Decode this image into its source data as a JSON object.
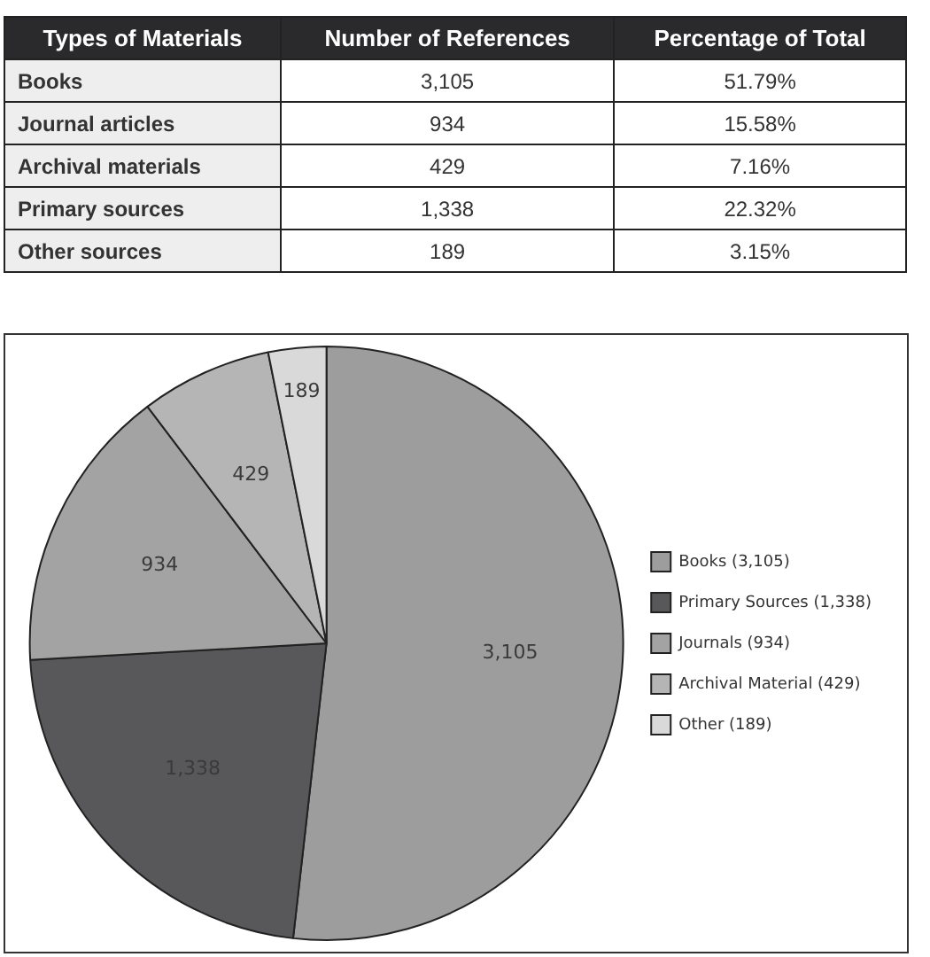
{
  "chart_data": [
    {
      "type": "other",
      "annotations": [
        "Types of Materials",
        "Number of References",
        "Percentage of Total",
        "Books",
        "3,105",
        "51.79%",
        "Journal articles",
        "934",
        "15.58%",
        "Archival materials",
        "429",
        "7.16%",
        "Primary sources",
        "1,338",
        "22.32%",
        "Other sources",
        "189",
        "3.15%"
      ]
    },
    {
      "type": "pie",
      "categories": [
        "Books (3,105)",
        "Primary Sources (1,338)",
        "Journals (934)",
        "Archival Material (429)",
        "Other (189)"
      ],
      "values": [
        3105,
        1338,
        934,
        429,
        189
      ],
      "value_labels": [
        "3,105",
        "1,338",
        "934",
        "429",
        "189"
      ],
      "colors": [
        "#9d9d9d",
        "#58585a",
        "#a3a3a3",
        "#b5b5b5",
        "#d9d9d9"
      ],
      "legend": "right"
    }
  ]
}
